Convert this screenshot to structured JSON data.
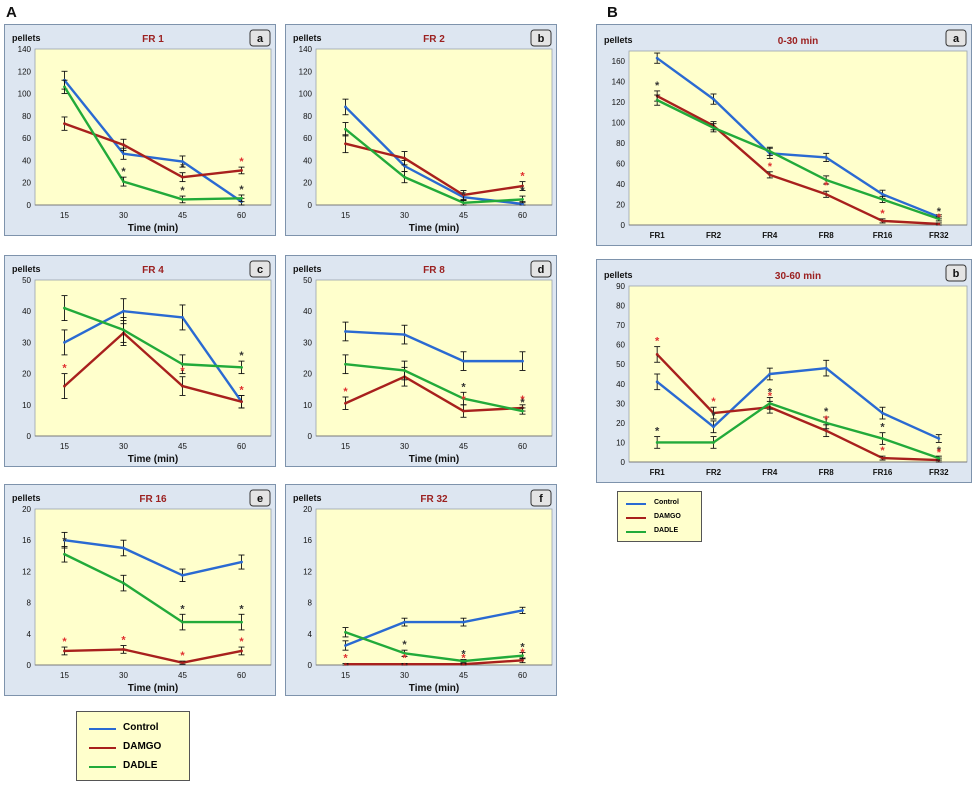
{
  "labels": {
    "A": "A",
    "B": "B"
  },
  "colors": {
    "Control": "#2a6ad2",
    "DAMGO": "#a8201d",
    "DADLE": "#22aa3a",
    "plot_bg": "#ffffcc",
    "panel_bg": "#dde6f1",
    "title": "#9b2020",
    "red_star": "#e03030",
    "black_star": "#333333"
  },
  "legend": {
    "items": [
      "Control",
      "DAMGO",
      "DADLE"
    ]
  },
  "chart_data": [
    {
      "id": "Aa",
      "type": "line",
      "title": "FR 1",
      "letter": "a",
      "ylabel": "pellets",
      "xlabel": "Time (min)",
      "categories": [
        "15",
        "30",
        "45",
        "60"
      ],
      "ylim": [
        0,
        140
      ],
      "yticks": [
        0,
        20,
        40,
        60,
        80,
        100,
        120,
        140
      ],
      "series": [
        {
          "name": "Control",
          "values": [
            112,
            46,
            39,
            3
          ],
          "err": [
            8,
            5,
            5,
            3
          ]
        },
        {
          "name": "DAMGO",
          "values": [
            73,
            54,
            25,
            31
          ],
          "err": [
            6,
            5,
            4,
            3
          ]
        },
        {
          "name": "DADLE",
          "values": [
            106,
            21,
            5,
            6
          ],
          "err": [
            6,
            4,
            3,
            3
          ]
        }
      ],
      "stars": [
        {
          "i": 1,
          "s": "DADLE",
          "c": "black"
        },
        {
          "i": 2,
          "s": "DAMGO",
          "c": "black"
        },
        {
          "i": 2,
          "s": "DADLE",
          "c": "black"
        },
        {
          "i": 3,
          "s": "DAMGO",
          "c": "red"
        },
        {
          "i": 3,
          "s": "DADLE",
          "c": "black"
        }
      ]
    },
    {
      "id": "Ab",
      "type": "line",
      "title": "FR 2",
      "letter": "b",
      "ylabel": "pellets",
      "xlabel": "Time (min)",
      "categories": [
        "15",
        "30",
        "45",
        "60"
      ],
      "ylim": [
        0,
        140
      ],
      "yticks": [
        0,
        20,
        40,
        60,
        80,
        100,
        120,
        140
      ],
      "series": [
        {
          "name": "Control",
          "values": [
            88,
            35,
            7,
            1
          ],
          "err": [
            7,
            5,
            3,
            2
          ]
        },
        {
          "name": "DAMGO",
          "values": [
            55,
            42,
            9,
            17
          ],
          "err": [
            8,
            6,
            4,
            4
          ]
        },
        {
          "name": "DADLE",
          "values": [
            68,
            25,
            2,
            5
          ],
          "err": [
            6,
            5,
            2,
            3
          ]
        }
      ],
      "stars": [
        {
          "i": 2,
          "s": "DADLE",
          "c": "black"
        },
        {
          "i": 3,
          "s": "DAMGO",
          "c": "red"
        },
        {
          "i": 3,
          "s": "DADLE",
          "c": "black"
        }
      ]
    },
    {
      "id": "Ac",
      "type": "line",
      "title": "FR 4",
      "letter": "c",
      "ylabel": "pellets",
      "xlabel": "Time (min)",
      "categories": [
        "15",
        "30",
        "45",
        "60"
      ],
      "ylim": [
        0,
        50
      ],
      "yticks": [
        0,
        10,
        20,
        30,
        40,
        50
      ],
      "series": [
        {
          "name": "Control",
          "values": [
            30,
            40,
            38,
            11
          ],
          "err": [
            4,
            4,
            4,
            2
          ]
        },
        {
          "name": "DAMGO",
          "values": [
            16,
            33,
            16,
            11
          ],
          "err": [
            4,
            4,
            3,
            2
          ]
        },
        {
          "name": "DADLE",
          "values": [
            41,
            34,
            23,
            22
          ],
          "err": [
            4,
            4,
            3,
            2
          ]
        }
      ],
      "stars": [
        {
          "i": 0,
          "s": "DAMGO",
          "c": "red"
        },
        {
          "i": 2,
          "s": "DAMGO",
          "c": "red"
        },
        {
          "i": 3,
          "s": "DADLE",
          "c": "black"
        },
        {
          "i": 3,
          "s": "DAMGO",
          "c": "red"
        }
      ]
    },
    {
      "id": "Ad",
      "type": "line",
      "title": "FR 8",
      "letter": "d",
      "ylabel": "pellets",
      "xlabel": "Time (min)",
      "categories": [
        "15",
        "30",
        "45",
        "60"
      ],
      "ylim": [
        0,
        50
      ],
      "yticks": [
        0,
        10,
        20,
        30,
        40,
        50
      ],
      "series": [
        {
          "name": "Control",
          "values": [
            33.5,
            32.5,
            24,
            24
          ],
          "err": [
            3,
            3,
            3,
            3
          ]
        },
        {
          "name": "DAMGO",
          "values": [
            10.5,
            19,
            8,
            9
          ],
          "err": [
            2,
            3,
            2,
            1
          ]
        },
        {
          "name": "DADLE",
          "values": [
            23,
            21,
            12,
            8
          ],
          "err": [
            3,
            3,
            2,
            1
          ]
        }
      ],
      "stars": [
        {
          "i": 0,
          "s": "DAMGO",
          "c": "red"
        },
        {
          "i": 2,
          "s": "DADLE",
          "c": "black"
        },
        {
          "i": 2,
          "s": "DAMGO",
          "c": "red"
        },
        {
          "i": 3,
          "s": "DAMGO",
          "c": "red"
        },
        {
          "i": 3,
          "s": "DADLE",
          "c": "black"
        }
      ]
    },
    {
      "id": "Ae",
      "type": "line",
      "title": "FR 16",
      "letter": "e",
      "ylabel": "pellets",
      "xlabel": "Time (min)",
      "categories": [
        "15",
        "30",
        "45",
        "60"
      ],
      "ylim": [
        0,
        20
      ],
      "yticks": [
        0,
        4,
        8,
        12,
        16,
        20
      ],
      "series": [
        {
          "name": "Control",
          "values": [
            16,
            15,
            11.5,
            13.2
          ],
          "err": [
            1,
            1,
            0.8,
            0.9
          ]
        },
        {
          "name": "DAMGO",
          "values": [
            1.8,
            2,
            0.3,
            1.8
          ],
          "err": [
            0.5,
            0.5,
            0.2,
            0.5
          ]
        },
        {
          "name": "DADLE",
          "values": [
            14.2,
            10.5,
            5.5,
            5.5
          ],
          "err": [
            1,
            1,
            1,
            1
          ]
        }
      ],
      "stars": [
        {
          "i": 0,
          "s": "DAMGO",
          "c": "red"
        },
        {
          "i": 0,
          "s": "DADLE",
          "c": "black"
        },
        {
          "i": 1,
          "s": "DAMGO",
          "c": "red"
        },
        {
          "i": 2,
          "s": "DAMGO",
          "c": "red"
        },
        {
          "i": 2,
          "s": "DADLE",
          "c": "black"
        },
        {
          "i": 3,
          "s": "DAMGO",
          "c": "red"
        },
        {
          "i": 3,
          "s": "DADLE",
          "c": "black"
        }
      ]
    },
    {
      "id": "Af",
      "type": "line",
      "title": "FR 32",
      "letter": "f",
      "ylabel": "pellets",
      "xlabel": "Time (min)",
      "categories": [
        "15",
        "30",
        "45",
        "60"
      ],
      "ylim": [
        0,
        20
      ],
      "yticks": [
        0,
        4,
        8,
        12,
        16,
        20
      ],
      "series": [
        {
          "name": "Control",
          "values": [
            2.5,
            5.5,
            5.5,
            7
          ],
          "err": [
            0.6,
            0.5,
            0.5,
            0.4
          ]
        },
        {
          "name": "DAMGO",
          "values": [
            0.1,
            0.1,
            0.1,
            0.6
          ],
          "err": [
            0.1,
            0.1,
            0.1,
            0.3
          ]
        },
        {
          "name": "DADLE",
          "values": [
            4.2,
            1.5,
            0.5,
            1.2
          ],
          "err": [
            0.6,
            0.4,
            0.2,
            0.4
          ]
        }
      ],
      "stars": [
        {
          "i": 0,
          "s": "DAMGO",
          "c": "red"
        },
        {
          "i": 1,
          "s": "DAMGO",
          "c": "red"
        },
        {
          "i": 1,
          "s": "DADLE",
          "c": "black"
        },
        {
          "i": 2,
          "s": "DAMGO",
          "c": "red"
        },
        {
          "i": 2,
          "s": "DADLE",
          "c": "black"
        },
        {
          "i": 3,
          "s": "DAMGO",
          "c": "red"
        },
        {
          "i": 3,
          "s": "DADLE",
          "c": "black"
        }
      ]
    },
    {
      "id": "Ba",
      "type": "line",
      "title": "0-30 min",
      "letter": "a",
      "ylabel": "pellets",
      "xlabel": "",
      "categories": [
        "FR1",
        "FR2",
        "FR4",
        "FR8",
        "FR16",
        "FR32"
      ],
      "ylim": [
        0,
        170
      ],
      "yticks": [
        0,
        20,
        40,
        60,
        80,
        100,
        120,
        140,
        160
      ],
      "series": [
        {
          "name": "Control",
          "values": [
            163,
            123,
            70,
            66,
            30,
            8
          ],
          "err": [
            5,
            5,
            5,
            4,
            4,
            2
          ]
        },
        {
          "name": "DAMGO",
          "values": [
            126,
            97,
            49,
            30,
            4,
            1
          ],
          "err": [
            5,
            4,
            3,
            3,
            2,
            1
          ]
        },
        {
          "name": "DADLE",
          "values": [
            122,
            95,
            72,
            44,
            25,
            6
          ],
          "err": [
            5,
            4,
            4,
            4,
            3,
            2
          ]
        }
      ],
      "stars": [
        {
          "i": 0,
          "s": "DAMGO",
          "c": "black"
        },
        {
          "i": 2,
          "s": "DAMGO",
          "c": "red"
        },
        {
          "i": 3,
          "s": "DAMGO",
          "c": "red"
        },
        {
          "i": 4,
          "s": "DAMGO",
          "c": "red"
        },
        {
          "i": 5,
          "s": "DADLE",
          "c": "black"
        },
        {
          "i": 5,
          "s": "DAMGO",
          "c": "red"
        }
      ]
    },
    {
      "id": "Bb",
      "type": "line",
      "title": "30-60 min",
      "letter": "b",
      "ylabel": "pellets",
      "xlabel": "",
      "categories": [
        "FR1",
        "FR2",
        "FR4",
        "FR8",
        "FR16",
        "FR32"
      ],
      "ylim": [
        0,
        90
      ],
      "yticks": [
        0,
        10,
        20,
        30,
        40,
        50,
        60,
        70,
        80,
        90
      ],
      "series": [
        {
          "name": "Control",
          "values": [
            41,
            18,
            45,
            48,
            25,
            12
          ],
          "err": [
            4,
            3,
            3,
            4,
            3,
            2
          ]
        },
        {
          "name": "DAMGO",
          "values": [
            55,
            25,
            28,
            16,
            2,
            1
          ],
          "err": [
            4,
            3,
            3,
            3,
            1,
            1
          ]
        },
        {
          "name": "DADLE",
          "values": [
            10,
            10,
            30,
            20,
            12,
            2
          ],
          "err": [
            3,
            3,
            3,
            3,
            3,
            1
          ]
        }
      ],
      "stars": [
        {
          "i": 0,
          "s": "DAMGO",
          "c": "red"
        },
        {
          "i": 0,
          "s": "DADLE",
          "c": "black"
        },
        {
          "i": 1,
          "s": "DAMGO",
          "c": "red"
        },
        {
          "i": 1,
          "s": "Control",
          "c": "black"
        },
        {
          "i": 2,
          "s": "DADLE",
          "c": "black"
        },
        {
          "i": 2,
          "s": "DAMGO",
          "c": "red"
        },
        {
          "i": 3,
          "s": "DADLE",
          "c": "black"
        },
        {
          "i": 3,
          "s": "DAMGO",
          "c": "red"
        },
        {
          "i": 4,
          "s": "DADLE",
          "c": "black"
        },
        {
          "i": 4,
          "s": "DAMGO",
          "c": "red"
        },
        {
          "i": 5,
          "s": "DADLE",
          "c": "black"
        },
        {
          "i": 5,
          "s": "DAMGO",
          "c": "red"
        }
      ]
    }
  ]
}
